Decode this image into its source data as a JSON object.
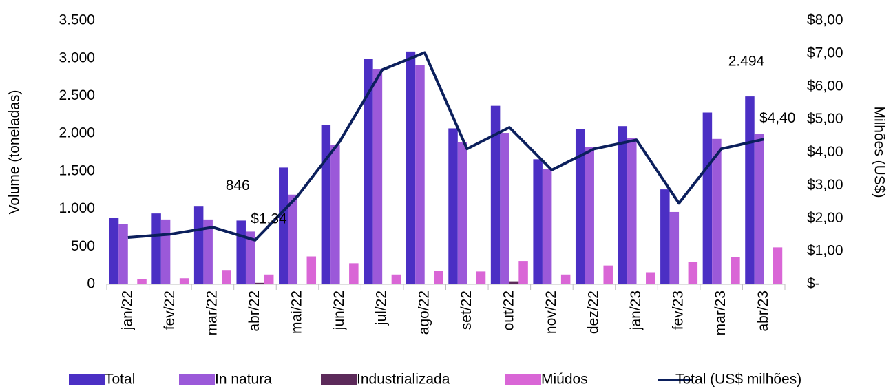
{
  "chart_data": {
    "type": "bar",
    "y_label": "Volume (toneladas)",
    "y2_label": "Milhões (US$)",
    "categories": [
      "jan/22",
      "fev/22",
      "mar/22",
      "abr/22",
      "mai/22",
      "jun/22",
      "jul/22",
      "ago/22",
      "set/22",
      "out/22",
      "nov/22",
      "dez/22",
      "jan/23",
      "fev/23",
      "mar/23",
      "abr/23"
    ],
    "series": [
      {
        "name": "Total",
        "color": "#4b2fc4",
        "values": [
          880,
          940,
          1040,
          846,
          1550,
          2120,
          2990,
          3090,
          2070,
          2370,
          1660,
          2060,
          2100,
          1260,
          2280,
          2494
        ],
        "value_labels": [
          null,
          null,
          null,
          "846",
          null,
          null,
          null,
          null,
          null,
          null,
          null,
          null,
          null,
          null,
          null,
          "2.494"
        ]
      },
      {
        "name": "In natura",
        "color": "#9b59d9",
        "values": [
          800,
          860,
          860,
          700,
          1190,
          1850,
          2860,
          2910,
          1890,
          2010,
          1530,
          1820,
          1940,
          960,
          1930,
          2000
        ]
      },
      {
        "name": "Industrializada",
        "color": "#5c2a5a",
        "values": [
          0,
          0,
          0,
          20,
          0,
          0,
          0,
          0,
          0,
          40,
          0,
          0,
          0,
          0,
          0,
          0
        ]
      },
      {
        "name": "Miúdos",
        "color": "#d966d6",
        "values": [
          70,
          80,
          190,
          130,
          370,
          280,
          130,
          180,
          170,
          310,
          130,
          250,
          160,
          300,
          360,
          490
        ]
      },
      {
        "name": "Total (US$ milhões)",
        "color": "#0b1f5c",
        "type": "line",
        "axis": "y2",
        "values": [
          1.42,
          1.52,
          1.73,
          1.34,
          2.67,
          4.34,
          6.51,
          7.03,
          4.11,
          4.76,
          3.47,
          4.11,
          4.38,
          2.46,
          4.11,
          4.4
        ],
        "value_labels": [
          null,
          null,
          null,
          "$1,34",
          null,
          null,
          null,
          null,
          null,
          null,
          null,
          null,
          null,
          null,
          null,
          "$4,40"
        ]
      }
    ],
    "ylim": [
      0,
      3500
    ],
    "yticks": [
      0,
      500,
      {
        "value": 1000,
        "label": "1.000"
      },
      {
        "value": 1500,
        "label": "1.500"
      },
      {
        "value": 2000,
        "label": "2.000"
      },
      {
        "value": 2500,
        "label": "2.500"
      },
      {
        "value": 3000,
        "label": "3.000"
      },
      {
        "value": 3500,
        "label": "3.500"
      }
    ],
    "y2lim": [
      0,
      8
    ],
    "y2ticks": [
      {
        "value": 0,
        "label": "$-"
      },
      {
        "value": 1,
        "label": "$1,00"
      },
      {
        "value": 2,
        "label": "$2,00"
      },
      {
        "value": 3,
        "label": "$3,00"
      },
      {
        "value": 4,
        "label": "$4,00"
      },
      {
        "value": 5,
        "label": "$5,00"
      },
      {
        "value": 6,
        "label": "$6,00"
      },
      {
        "value": 7,
        "label": "$7,00"
      },
      {
        "value": 8,
        "label": "$8,00"
      }
    ],
    "grid": false,
    "legend": "bottom"
  }
}
